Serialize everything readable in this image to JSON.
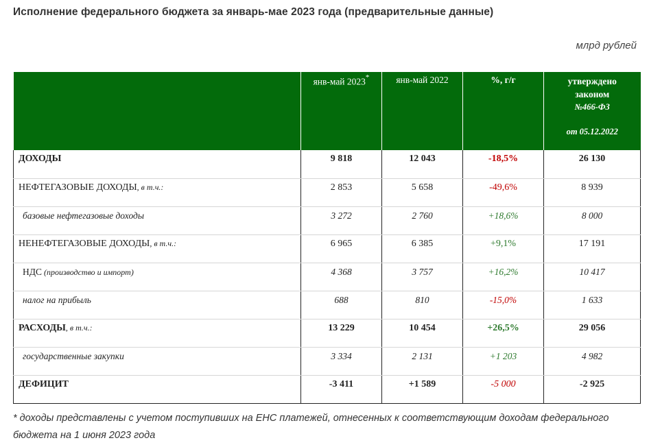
{
  "title": "Исполнение федерального бюджета за январь-мае 2023 года (предварительные данные)",
  "units": "млрд рублей",
  "header": {
    "col1": "янв-май 2023",
    "col1_mark": "*",
    "col2": "янв-май 2022",
    "col3": "%, г/г",
    "col4_line1": "утверждено",
    "col4_line2": "законом",
    "col4_line3": "№466-ФЗ",
    "col4_line4": "от 05.12.2022"
  },
  "rows": [
    {
      "label": "ДОХОДЫ",
      "note": "",
      "v2023": "9 818",
      "v2022": "12 043",
      "pct": "-18,5%",
      "law": "26 130"
    },
    {
      "label": "НЕФТЕГАЗОВЫЕ ДОХОДЫ",
      "note": ", в т.ч.:",
      "v2023": "2 853",
      "v2022": "5 658",
      "pct": "-49,6%",
      "law": "8 939"
    },
    {
      "label": "базовые нефтегазовые доходы",
      "note": "",
      "v2023": "3 272",
      "v2022": "2 760",
      "pct": "+18,6%",
      "law": "8 000"
    },
    {
      "label": "НЕНЕФТЕГАЗОВЫЕ ДОХОДЫ",
      "note": ", в т.ч.:",
      "v2023": "6 965",
      "v2022": "6 385",
      "pct": "+9,1%",
      "law": "17 191"
    },
    {
      "label": "НДС",
      "note": " (производство и импорт)",
      "v2023": "4 368",
      "v2022": "3 757",
      "pct": "+16,2%",
      "law": "10 417"
    },
    {
      "label": "налог на прибыль",
      "note": "",
      "v2023": "688",
      "v2022": "810",
      "pct": "-15,0%",
      "law": "1 633"
    },
    {
      "label": "РАСХОДЫ",
      "note": ", в т.ч.:",
      "v2023": "13 229",
      "v2022": "10 454",
      "pct": "+26,5%",
      "law": "29 056"
    },
    {
      "label": "государственные закупки",
      "note": "",
      "v2023": "3 334",
      "v2022": "2 131",
      "pct": "+1 203",
      "law": "4 982"
    },
    {
      "label": "ДЕФИЦИТ",
      "note": "",
      "v2023": "-3 411",
      "v2022": "+1 589",
      "pct": "-5 000",
      "law": "-2 925"
    }
  ],
  "footnote": "* доходы представлены с учетом поступивших на ЕНС платежей, отнесенных к соответствующим доходам федерального бюджета на 1 июня 2023 года",
  "colors": {
    "header_bg": "#036b0b",
    "negative": "#c00000",
    "positive": "#2e7a2e"
  }
}
